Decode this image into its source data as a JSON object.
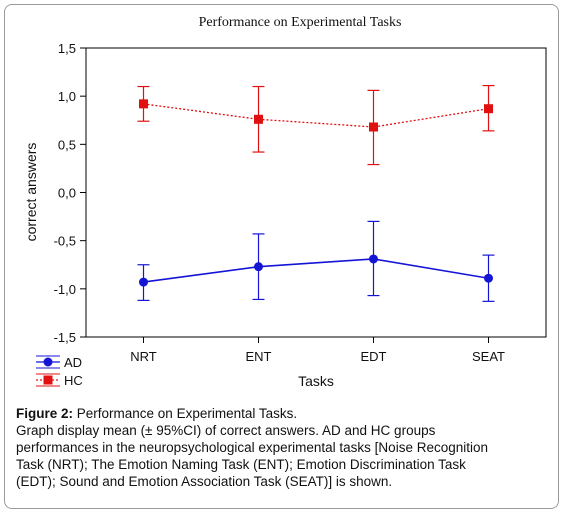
{
  "chart_data": {
    "type": "line",
    "title": "Performance on Experimental Tasks",
    "xlabel": "Tasks",
    "ylabel": "correct answers",
    "categories": [
      "NRT",
      "ENT",
      "EDT",
      "SEAT"
    ],
    "ylim": [
      -1.5,
      1.5
    ],
    "yticks": [
      1.5,
      1.0,
      0.5,
      0.0,
      -0.5,
      -1.0,
      -1.5
    ],
    "ytick_labels": [
      "1,5",
      "1,0",
      "0,5",
      "0,0",
      "-0,5",
      "-1,0",
      "-1,5"
    ],
    "grid": false,
    "legend_position": "bottom-left",
    "series": [
      {
        "name": "AD",
        "color": "#1515d6",
        "marker": "circle",
        "line_style": "solid",
        "values": [
          -0.93,
          -0.77,
          -0.69,
          -0.89
        ],
        "ci_low": [
          -1.12,
          -1.11,
          -1.07,
          -1.13
        ],
        "ci_high": [
          -0.75,
          -0.43,
          -0.3,
          -0.65
        ]
      },
      {
        "name": "HC",
        "color": "#e01010",
        "marker": "square",
        "line_style": "dotted",
        "values": [
          0.92,
          0.76,
          0.68,
          0.87
        ],
        "ci_low": [
          0.74,
          0.42,
          0.29,
          0.64
        ],
        "ci_high": [
          1.1,
          1.1,
          1.06,
          1.11
        ]
      }
    ]
  },
  "caption": {
    "label": "Figure 2:",
    "title": " Performance on Experimental Tasks.",
    "lines": [
      "Graph display mean (± 95%CI) of correct answers. AD and HC groups",
      "performances in the neuropsychological experimental tasks [Noise Recognition",
      "Task (NRT); The Emotion Naming Task (ENT); Emotion Discrimination Task",
      "(EDT); Sound and Emotion Association Task (SEAT)] is shown."
    ]
  }
}
